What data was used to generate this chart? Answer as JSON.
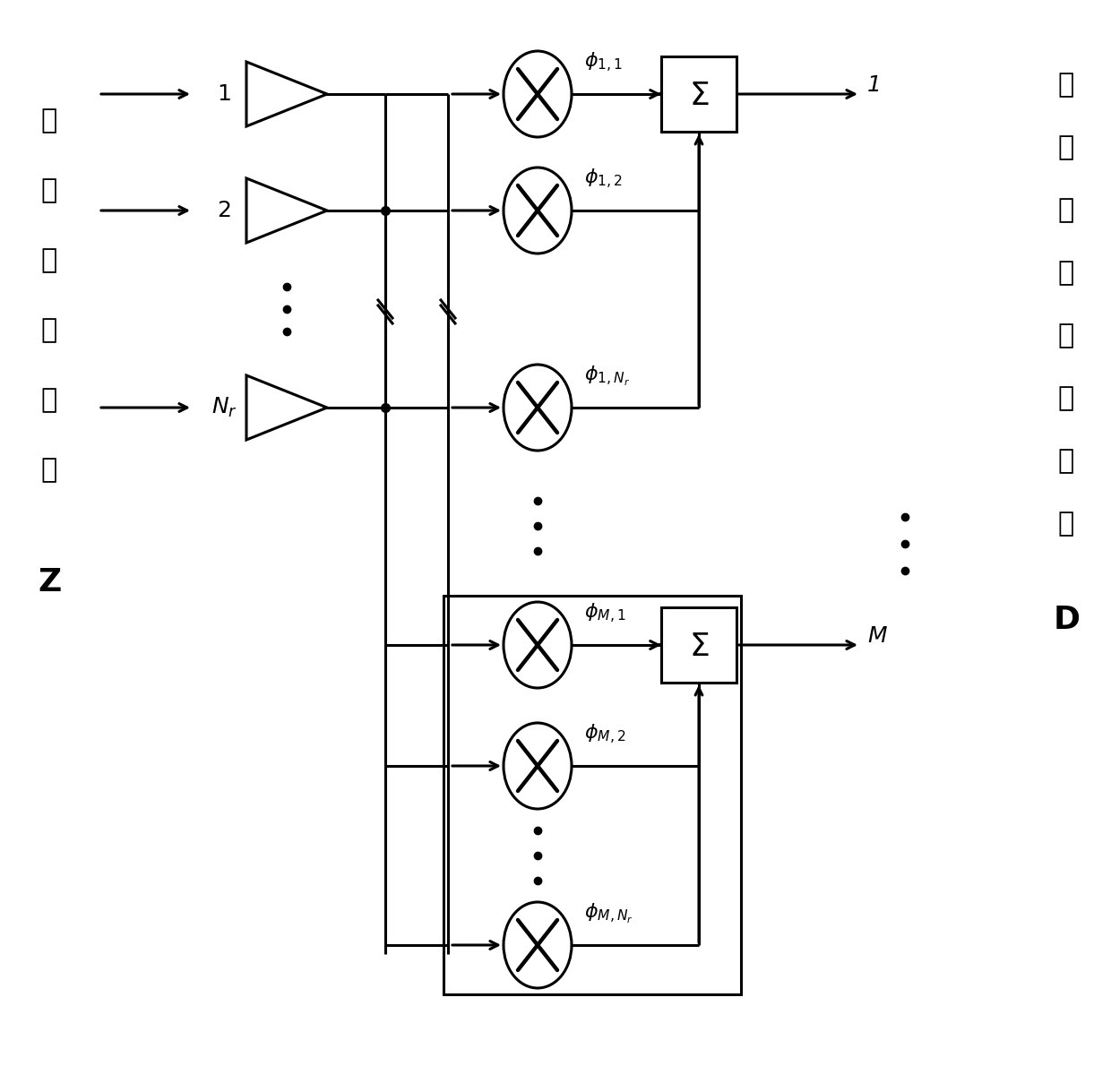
{
  "bg_color": "#ffffff",
  "line_color": "#000000",
  "lw": 2.2,
  "left_chinese": [
    "雷",
    "达",
    "回",
    "波",
    "信",
    "号"
  ],
  "right_chinese": [
    "空",
    "域",
    "压",
    "缩",
    "投",
    "影",
    "结",
    "果"
  ],
  "amp_labels_top": [
    "1",
    "2"
  ],
  "amp_label_nr": "N_r",
  "phi_top": [
    "\\phi_{1,1}",
    "\\phi_{1,2}",
    "\\phi_{1,N_r}"
  ],
  "phi_bot": [
    "\\phi_{M,1}",
    "\\phi_{M,2}",
    "\\phi_{M,N_r}"
  ],
  "out_top": "1",
  "out_bot": "M"
}
